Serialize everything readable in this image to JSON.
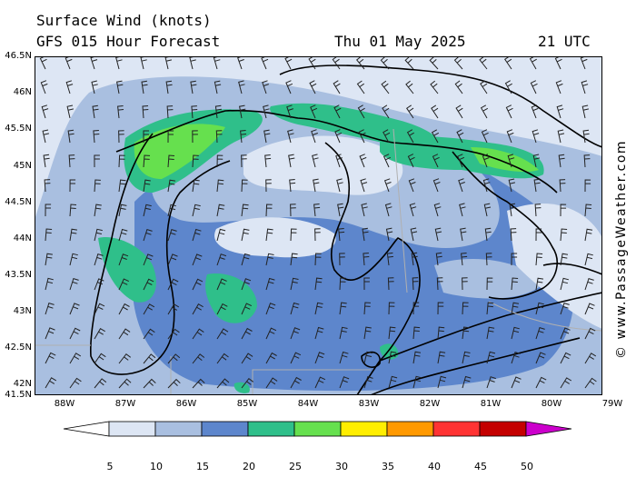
{
  "header": {
    "title": "Surface Wind (knots)",
    "subtitle": "GFS 015 Hour Forecast",
    "date": "Thu 01 May 2025",
    "time": "21 UTC"
  },
  "credit": "© www.PassageWeather.com",
  "lat_labels": [
    "46.5N",
    "46N",
    "45.5N",
    "45N",
    "44.5N",
    "44N",
    "43.5N",
    "43N",
    "42.5N",
    "42N",
    "41.5N"
  ],
  "lon_labels": [
    "88W",
    "87W",
    "86W",
    "85W",
    "84W",
    "83W",
    "82W",
    "81W",
    "80W",
    "79W"
  ],
  "legend": {
    "values": [
      "5",
      "10",
      "15",
      "20",
      "25",
      "30",
      "35",
      "40",
      "45",
      "50"
    ],
    "colors": [
      "#ffffff",
      "#dde6f4",
      "#a9bfe0",
      "#5d86cc",
      "#2fbf8a",
      "#66e04e",
      "#ffee00",
      "#ff9900",
      "#ff3333",
      "#c40000",
      "#cc00cc"
    ]
  },
  "colors": {
    "land_outline": "#000000",
    "border": "#b0b0b0"
  }
}
